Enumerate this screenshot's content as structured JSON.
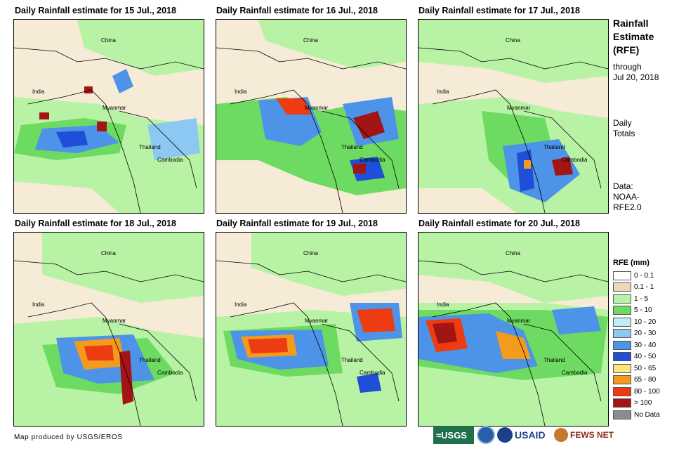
{
  "panels": [
    {
      "title": "Daily Rainfall estimate for 15 Jul., 2018"
    },
    {
      "title": "Daily Rainfall estimate for 16 Jul., 2018"
    },
    {
      "title": "Daily Rainfall estimate for 17 Jul., 2018"
    },
    {
      "title": "Daily Rainfall estimate for 18 Jul., 2018"
    },
    {
      "title": "Daily Rainfall estimate for 19 Jul., 2018"
    },
    {
      "title": "Daily Rainfall estimate for 20 Jul., 2018"
    }
  ],
  "place_labels": {
    "china": "China",
    "india": "India",
    "myanmar": "Myanmar",
    "thailand": "Thailand",
    "cambodia": "Cambodia"
  },
  "sidebar": {
    "title_line1": "Rainfall",
    "title_line2": "Estimate",
    "title_line3": "(RFE)",
    "through": "through",
    "date": "Jul 20, 2018",
    "daily": "Daily",
    "totals": "Totals",
    "data_label": "Data:",
    "data_src1": "NOAA-",
    "data_src2": "RFE2.0"
  },
  "legend": {
    "title": "RFE (mm)",
    "items": [
      {
        "label": "0 - 0.1",
        "color": "#ffffff"
      },
      {
        "label": "0.1 - 1",
        "color": "#ecd9b8"
      },
      {
        "label": "1 - 5",
        "color": "#b8f2a4"
      },
      {
        "label": "5 - 10",
        "color": "#6ddb61"
      },
      {
        "label": "10 - 20",
        "color": "#bfeff5"
      },
      {
        "label": "20 - 30",
        "color": "#8cc8f2"
      },
      {
        "label": "30 - 40",
        "color": "#4d94e8"
      },
      {
        "label": "40 - 50",
        "color": "#1e4fd6"
      },
      {
        "label": "50 - 65",
        "color": "#fbe67a"
      },
      {
        "label": "65 - 80",
        "color": "#f49a1c"
      },
      {
        "label": "80 - 100",
        "color": "#ed3b12"
      },
      {
        "label": "> 100",
        "color": "#a31414"
      },
      {
        "label": "No Data",
        "color": "#8c8c8c"
      }
    ]
  },
  "credit": "Map produced by USGS/EROS",
  "logos": {
    "usgs": "≈USGS",
    "usaid": "USAID",
    "fews": "FEWS NET"
  }
}
